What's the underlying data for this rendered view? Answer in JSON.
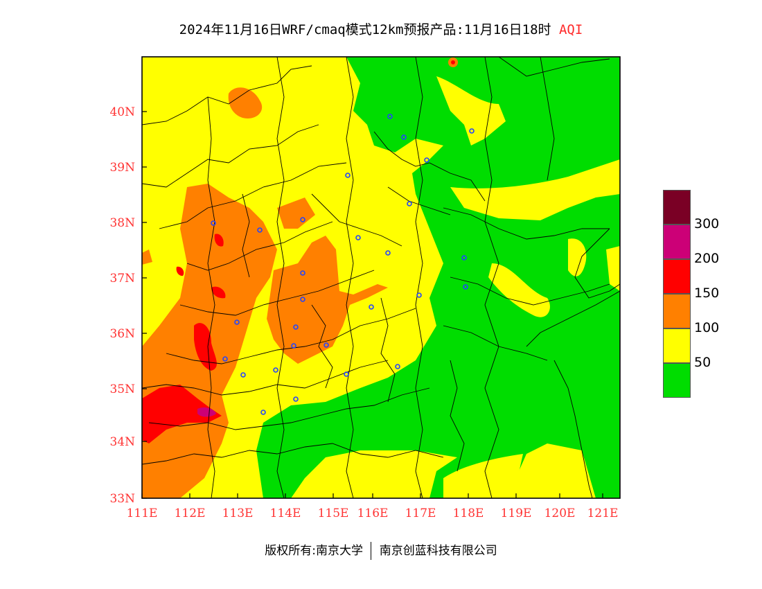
{
  "title": {
    "main": "2024年11月16日WRF/cmaq模式12km预报产品:11月16日18时",
    "variable": "AQI"
  },
  "map": {
    "x_axis_labels": [
      "111E",
      "112E",
      "113E",
      "114E",
      "115E",
      "116E",
      "117E",
      "118E",
      "119E",
      "120E",
      "121E"
    ],
    "y_axis_labels": [
      "33N",
      "34N",
      "35N",
      "36N",
      "37N",
      "38N",
      "39N",
      "40N"
    ],
    "colors": {
      "good": "#00dd00",
      "moderate": "#ffff00",
      "unhealthy_sensitive": "#ff8000",
      "unhealthy": "#ff0000",
      "very_unhealthy": "#cc0077",
      "hazardous": "#7a0025",
      "station_marker": "#2244ff",
      "axis_label": "#ff3333"
    }
  },
  "legend": {
    "swatches": [
      "#7a0025",
      "#cc0077",
      "#ff0000",
      "#ff8000",
      "#ffff00",
      "#00dd00"
    ],
    "labels": [
      "300",
      "200",
      "150",
      "100",
      "50"
    ]
  },
  "footer": {
    "copyright": "版权所有:南京大学",
    "company": "南京创蓝科技有限公司"
  }
}
